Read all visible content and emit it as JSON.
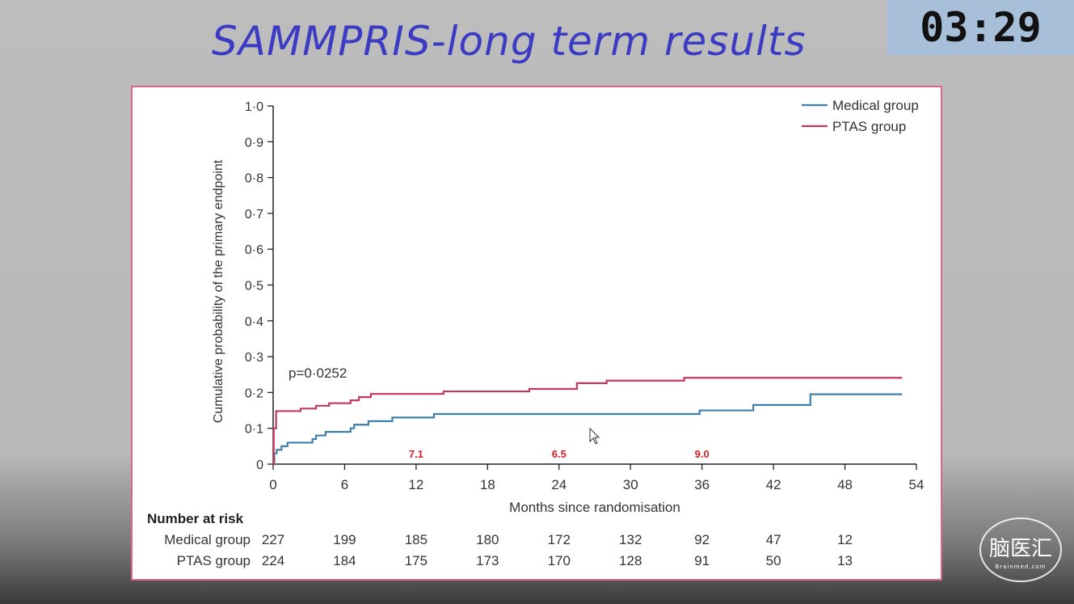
{
  "slide": {
    "title": "SAMMPRIS-long term results"
  },
  "timer": {
    "text": "03:29"
  },
  "watermark": {
    "main": "脑医汇",
    "sub": "Brainmed.com"
  },
  "chart_data": {
    "type": "line",
    "step": true,
    "title": "",
    "xlabel": "Months since randomisation",
    "ylabel": "Cumulative probability of the primary endpoint",
    "xlim": [
      0,
      54
    ],
    "ylim": [
      0,
      1.0
    ],
    "x_ticks": [
      "0",
      "6",
      "12",
      "18",
      "24",
      "30",
      "36",
      "42",
      "48",
      "54"
    ],
    "y_ticks": [
      "0",
      "0·1",
      "0·2",
      "0·3",
      "0·4",
      "0·5",
      "0·6",
      "0·7",
      "0·8",
      "0·9",
      "1·0"
    ],
    "legend_position": "top-right",
    "annotation": "p=0·0252",
    "colors": {
      "Medical group": "#3f7fae",
      "PTAS group": "#c2385f",
      "marker_labels": "#d0202a"
    },
    "markers": [
      {
        "x": 12,
        "label": "7.1"
      },
      {
        "x": 24,
        "label": "6.5"
      },
      {
        "x": 36,
        "label": "9.0"
      }
    ],
    "series": [
      {
        "name": "Medical group",
        "points": [
          [
            0,
            0
          ],
          [
            0.1,
            0.03
          ],
          [
            0.3,
            0.04
          ],
          [
            0.7,
            0.05
          ],
          [
            1.2,
            0.06
          ],
          [
            3.3,
            0.07
          ],
          [
            3.6,
            0.08
          ],
          [
            4.4,
            0.09
          ],
          [
            6.5,
            0.1
          ],
          [
            6.8,
            0.11
          ],
          [
            8,
            0.12
          ],
          [
            10,
            0.13
          ],
          [
            13.5,
            0.14
          ],
          [
            35.8,
            0.15
          ],
          [
            40.3,
            0.165
          ],
          [
            45.1,
            0.195
          ],
          [
            52.8,
            0.195
          ]
        ]
      },
      {
        "name": "PTAS group",
        "points": [
          [
            0,
            0
          ],
          [
            0.05,
            0.1
          ],
          [
            0.25,
            0.148
          ],
          [
            2.3,
            0.155
          ],
          [
            3.6,
            0.163
          ],
          [
            4.7,
            0.17
          ],
          [
            6.5,
            0.178
          ],
          [
            7.2,
            0.187
          ],
          [
            8.2,
            0.196
          ],
          [
            14.3,
            0.203
          ],
          [
            21.5,
            0.21
          ],
          [
            25.5,
            0.226
          ],
          [
            28,
            0.233
          ],
          [
            34.5,
            0.241
          ],
          [
            52.8,
            0.241
          ]
        ]
      }
    ],
    "risk_table": {
      "header": "Number at risk",
      "columns_x": [
        0,
        6,
        12,
        18,
        24,
        30,
        36,
        42,
        48
      ],
      "rows": [
        {
          "group": "Medical group",
          "values": [
            "227",
            "199",
            "185",
            "180",
            "172",
            "132",
            "92",
            "47",
            "12"
          ]
        },
        {
          "group": "PTAS group",
          "values": [
            "224",
            "184",
            "175",
            "173",
            "170",
            "128",
            "91",
            "50",
            "13"
          ]
        }
      ]
    }
  }
}
